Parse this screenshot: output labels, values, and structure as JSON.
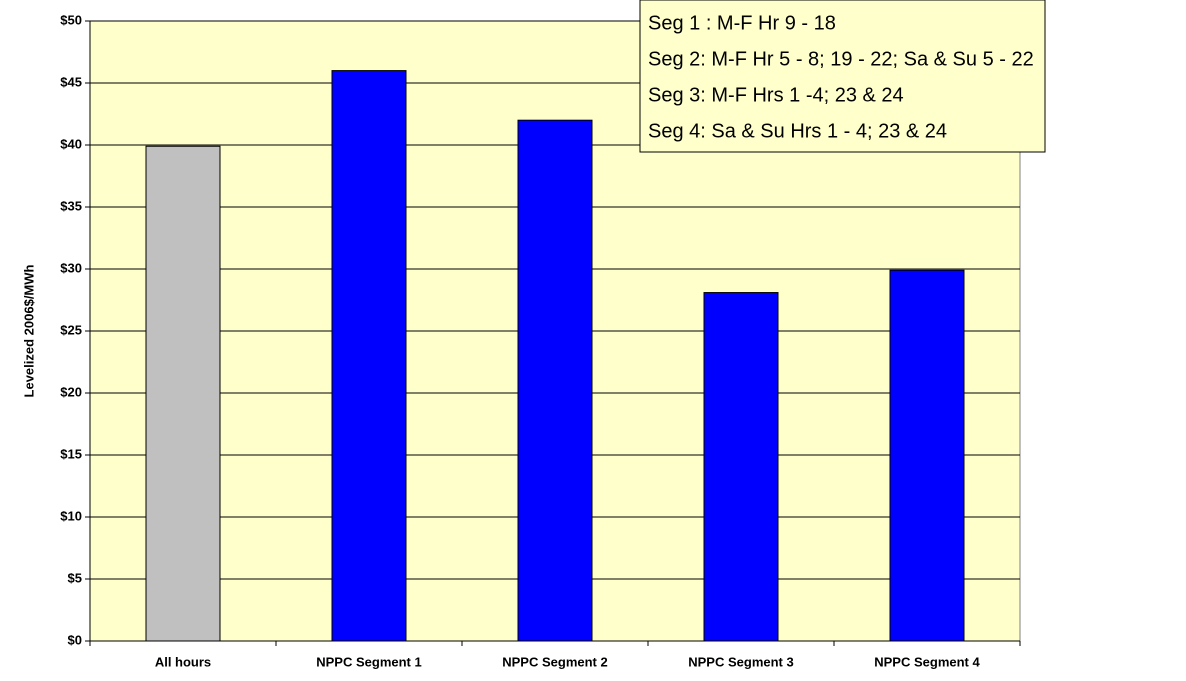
{
  "chart_data": {
    "type": "bar",
    "y_label": "Levelized 2006$/MWh",
    "categories": [
      "All hours",
      "NPPC Segment 1",
      "NPPC Segment 2",
      "NPPC Segment 3",
      "NPPC Segment 4"
    ],
    "values": [
      39.9,
      46,
      42,
      28.1,
      29.9
    ],
    "colors": [
      "#c0c0c0",
      "#0000ff",
      "#0000ff",
      "#0000ff",
      "#0000ff"
    ],
    "ylim": [
      0,
      50
    ],
    "yticks": [
      {
        "value": 0,
        "label": "$0"
      },
      {
        "value": 5,
        "label": "$5"
      },
      {
        "value": 10,
        "label": "$10"
      },
      {
        "value": 15,
        "label": "$15"
      },
      {
        "value": 20,
        "label": "$20"
      },
      {
        "value": 25,
        "label": "$25"
      },
      {
        "value": 30,
        "label": "$30"
      },
      {
        "value": 35,
        "label": "$35"
      },
      {
        "value": 40,
        "label": "$40"
      },
      {
        "value": 45,
        "label": "$45"
      },
      {
        "value": 50,
        "label": "$50"
      }
    ],
    "grid": true,
    "annotations": [
      "Seg 1 : M-F Hr 9 - 18",
      "Seg 2: M-F Hr 5 - 8; 19 - 22; Sa & Su 5 - 22",
      "Seg 3: M-F Hrs 1 -4; 23 & 24",
      "Seg 4: Sa & Su Hrs 1 - 4; 23 & 24"
    ]
  }
}
